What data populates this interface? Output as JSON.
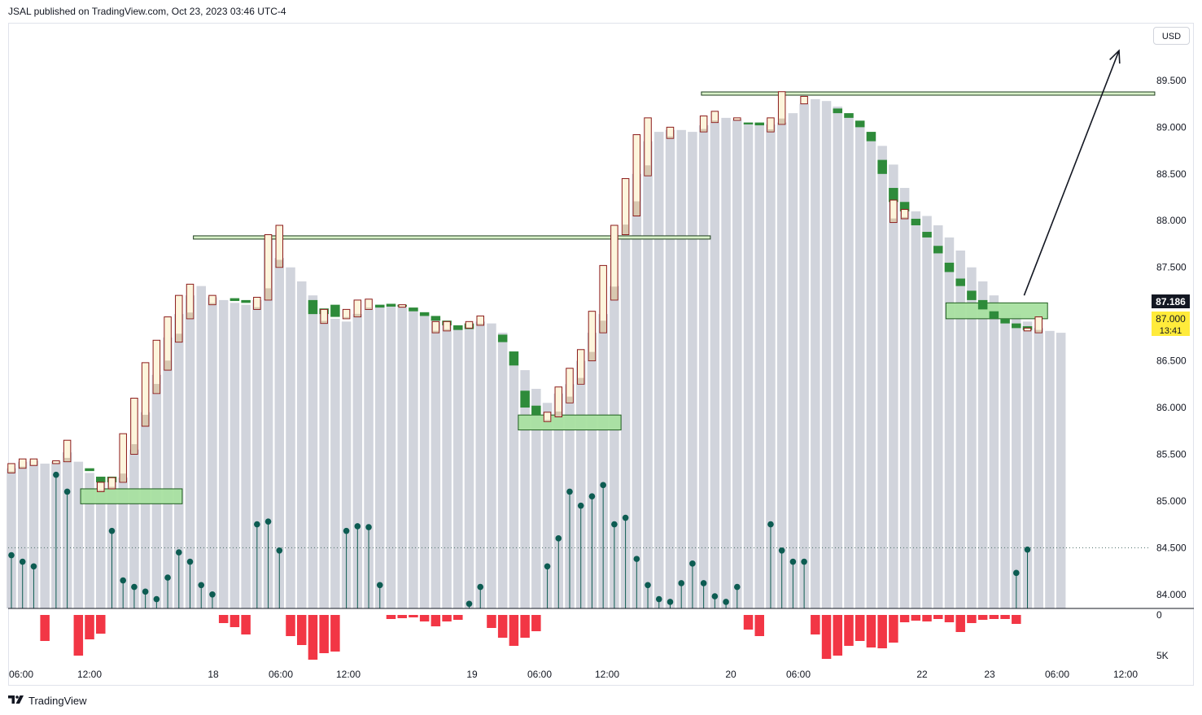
{
  "header": {
    "publisher_line": "JSAL published on TradingView.com, Oct 23, 2023 03:46 UTC-4"
  },
  "toolbar": {
    "currency_label": "USD"
  },
  "footer": {
    "brand_icon": "tradingview-logo-icon",
    "brand_name": "TradingView"
  },
  "price_tags": {
    "last_price": "87.186",
    "current_price": "87.000",
    "countdown": "13:41"
  },
  "colors": {
    "profile": "#d1d4dc",
    "candle_fill": "#fdf5dc",
    "candle_border": "#8b1a1a",
    "green_block": "#2e8b3a",
    "zone_fill": "#a8e0a0",
    "zone_border": "#1e5c1e",
    "lollipop": "#0d5c52",
    "volume": "#f23645"
  },
  "chart_data": {
    "type": "bar",
    "ylim": [
      83.85,
      90.1
    ],
    "y_ticks": [
      "89.500",
      "89.000",
      "88.500",
      "88.000",
      "87.500",
      "86.500",
      "86.000",
      "85.500",
      "85.000",
      "84.500",
      "84.000"
    ],
    "x_ticks": [
      "06:00",
      "12:00",
      "18",
      "06:00",
      "12:00",
      "19",
      "06:00",
      "12:00",
      "20",
      "06:00",
      "22",
      "23",
      "06:00",
      "12:00"
    ],
    "volume_ticks": [
      "0",
      "5K"
    ],
    "volume_max": 6000,
    "reference_line": 84.5,
    "profile_tops": [
      85.35,
      85.42,
      85.43,
      85.4,
      85.42,
      85.52,
      85.42,
      85.3,
      85.22,
      85.2,
      85.25,
      85.55,
      85.95,
      86.35,
      86.75,
      87.0,
      87.2,
      87.3,
      87.18,
      87.15,
      87.12,
      87.1,
      87.15,
      87.8,
      87.6,
      87.5,
      87.35,
      87.2,
      87.0,
      86.95,
      86.92,
      87.0,
      87.05,
      87.1,
      87.1,
      87.08,
      87.05,
      87.0,
      86.95,
      86.9,
      86.85,
      86.88,
      86.92,
      86.9,
      86.8,
      86.6,
      86.4,
      86.2,
      86.05,
      86.15,
      86.25,
      86.5,
      86.8,
      87.0,
      87.3,
      87.8,
      88.5,
      88.85,
      88.95,
      88.97,
      88.97,
      88.95,
      89.02,
      89.05,
      89.1,
      89.08,
      89.05,
      89.03,
      89.03,
      89.05,
      89.15,
      89.25,
      89.3,
      89.28,
      89.22,
      89.15,
      89.05,
      88.95,
      88.8,
      88.6,
      88.35,
      88.1,
      88.05,
      87.95,
      87.82,
      87.68,
      87.5,
      87.35,
      87.2,
      87.1,
      87.0,
      86.92,
      86.85,
      86.82,
      86.8
    ],
    "bar_spacing": 13.72,
    "candles": [
      {
        "i": 0,
        "low": 85.3,
        "high": 85.4
      },
      {
        "i": 1,
        "low": 85.35,
        "high": 85.45
      },
      {
        "i": 2,
        "low": 85.38,
        "high": 85.45
      },
      {
        "i": 4,
        "low": 85.4,
        "high": 85.43
      },
      {
        "i": 5,
        "low": 85.42,
        "high": 85.65
      },
      {
        "i": 8,
        "low": 85.1,
        "high": 85.2
      },
      {
        "i": 9,
        "low": 85.13,
        "high": 85.25
      },
      {
        "i": 10,
        "low": 85.2,
        "high": 85.72
      },
      {
        "i": 11,
        "low": 85.5,
        "high": 86.1
      },
      {
        "i": 12,
        "low": 85.8,
        "high": 86.48
      },
      {
        "i": 13,
        "low": 86.15,
        "high": 86.72
      },
      {
        "i": 14,
        "low": 86.4,
        "high": 86.97
      },
      {
        "i": 15,
        "low": 86.7,
        "high": 87.2
      },
      {
        "i": 16,
        "low": 86.95,
        "high": 87.32
      },
      {
        "i": 18,
        "low": 87.1,
        "high": 87.2
      },
      {
        "i": 22,
        "low": 87.05,
        "high": 87.18
      },
      {
        "i": 23,
        "low": 87.15,
        "high": 87.85
      },
      {
        "i": 24,
        "low": 87.5,
        "high": 87.95
      },
      {
        "i": 28,
        "low": 86.9,
        "high": 87.05
      },
      {
        "i": 30,
        "low": 86.95,
        "high": 87.05
      },
      {
        "i": 31,
        "low": 86.97,
        "high": 87.15
      },
      {
        "i": 32,
        "low": 87.05,
        "high": 87.16
      },
      {
        "i": 35,
        "low": 87.08,
        "high": 87.1
      },
      {
        "i": 38,
        "low": 86.8,
        "high": 86.92
      },
      {
        "i": 39,
        "low": 86.82,
        "high": 86.92
      },
      {
        "i": 41,
        "low": 86.85,
        "high": 86.92
      },
      {
        "i": 42,
        "low": 86.88,
        "high": 86.98
      },
      {
        "i": 48,
        "low": 85.85,
        "high": 85.95
      },
      {
        "i": 49,
        "low": 85.9,
        "high": 86.22
      },
      {
        "i": 50,
        "low": 86.05,
        "high": 86.42
      },
      {
        "i": 51,
        "low": 86.25,
        "high": 86.62
      },
      {
        "i": 52,
        "low": 86.5,
        "high": 87.03
      },
      {
        "i": 53,
        "low": 86.8,
        "high": 87.52
      },
      {
        "i": 54,
        "low": 87.15,
        "high": 87.95
      },
      {
        "i": 55,
        "low": 87.85,
        "high": 88.45
      },
      {
        "i": 56,
        "low": 88.05,
        "high": 88.92
      },
      {
        "i": 57,
        "low": 88.48,
        "high": 89.1
      },
      {
        "i": 59,
        "low": 88.88,
        "high": 89.0
      },
      {
        "i": 62,
        "low": 88.95,
        "high": 89.12
      },
      {
        "i": 63,
        "low": 89.05,
        "high": 89.17
      },
      {
        "i": 65,
        "low": 89.08,
        "high": 89.1
      },
      {
        "i": 68,
        "low": 88.95,
        "high": 89.1
      },
      {
        "i": 69,
        "low": 89.03,
        "high": 89.38
      },
      {
        "i": 71,
        "low": 89.25,
        "high": 89.33
      },
      {
        "i": 79,
        "low": 87.98,
        "high": 88.22
      },
      {
        "i": 80,
        "low": 88.02,
        "high": 88.12
      },
      {
        "i": 91,
        "low": 86.82,
        "high": 86.85
      },
      {
        "i": 92,
        "low": 86.8,
        "high": 86.97
      }
    ],
    "green_blocks": [
      {
        "i": 7,
        "low": 85.32,
        "high": 85.35
      },
      {
        "i": 8,
        "low": 85.2,
        "high": 85.26
      },
      {
        "i": 9,
        "low": 85.2,
        "high": 85.26
      },
      {
        "i": 20,
        "low": 87.14,
        "high": 87.17
      },
      {
        "i": 21,
        "low": 87.12,
        "high": 87.15
      },
      {
        "i": 27,
        "low": 87.0,
        "high": 87.15
      },
      {
        "i": 28,
        "low": 87.0,
        "high": 87.06
      },
      {
        "i": 29,
        "low": 86.97,
        "high": 87.1
      },
      {
        "i": 33,
        "low": 87.07,
        "high": 87.1
      },
      {
        "i": 34,
        "low": 87.08,
        "high": 87.11
      },
      {
        "i": 35,
        "low": 87.08,
        "high": 87.1
      },
      {
        "i": 36,
        "low": 87.03,
        "high": 87.07
      },
      {
        "i": 37,
        "low": 86.98,
        "high": 87.02
      },
      {
        "i": 38,
        "low": 86.93,
        "high": 86.98
      },
      {
        "i": 39,
        "low": 86.88,
        "high": 86.93
      },
      {
        "i": 40,
        "low": 86.83,
        "high": 86.88
      },
      {
        "i": 41,
        "low": 86.84,
        "high": 86.9
      },
      {
        "i": 44,
        "low": 86.7,
        "high": 86.78
      },
      {
        "i": 45,
        "low": 86.45,
        "high": 86.6
      },
      {
        "i": 46,
        "low": 86.0,
        "high": 86.18
      },
      {
        "i": 47,
        "low": 85.92,
        "high": 86.02
      },
      {
        "i": 66,
        "low": 89.03,
        "high": 89.05
      },
      {
        "i": 67,
        "low": 89.02,
        "high": 89.05
      },
      {
        "i": 74,
        "low": 89.15,
        "high": 89.2
      },
      {
        "i": 75,
        "low": 89.1,
        "high": 89.15
      },
      {
        "i": 76,
        "low": 89.0,
        "high": 89.07
      },
      {
        "i": 77,
        "low": 88.85,
        "high": 88.95
      },
      {
        "i": 78,
        "low": 88.5,
        "high": 88.65
      },
      {
        "i": 79,
        "low": 88.2,
        "high": 88.35
      },
      {
        "i": 80,
        "low": 88.1,
        "high": 88.2
      },
      {
        "i": 81,
        "low": 87.95,
        "high": 88.02
      },
      {
        "i": 82,
        "low": 87.82,
        "high": 87.88
      },
      {
        "i": 83,
        "low": 87.65,
        "high": 87.73
      },
      {
        "i": 84,
        "low": 87.45,
        "high": 87.55
      },
      {
        "i": 85,
        "low": 87.3,
        "high": 87.38
      },
      {
        "i": 86,
        "low": 87.15,
        "high": 87.25
      },
      {
        "i": 87,
        "low": 87.05,
        "high": 87.15
      },
      {
        "i": 88,
        "low": 86.95,
        "high": 87.03
      },
      {
        "i": 89,
        "low": 86.9,
        "high": 86.95
      },
      {
        "i": 90,
        "low": 86.85,
        "high": 86.9
      },
      {
        "i": 91,
        "low": 86.83,
        "high": 86.87
      }
    ],
    "zones": [
      {
        "i0": 6.2,
        "i1": 15.3,
        "low": 84.97,
        "high": 85.13
      },
      {
        "i0": 45.4,
        "i1": 54.6,
        "low": 85.76,
        "high": 85.92
      },
      {
        "i0": 83.7,
        "i1": 92.8,
        "low": 86.95,
        "high": 87.12
      }
    ],
    "resistance_lines": [
      {
        "i0": 16.3,
        "i1": 62.6,
        "price": 87.82
      },
      {
        "i0": 61.8,
        "i1": 102.4,
        "price": 89.36
      }
    ],
    "arrow": {
      "from_i": 90.7,
      "from_price": 87.2,
      "to_i": 99.2,
      "to_price": 89.82
    },
    "lollipops": [
      {
        "i": 0,
        "v": 84.42
      },
      {
        "i": 1,
        "v": 84.35
      },
      {
        "i": 2,
        "v": 84.3
      },
      {
        "i": 4,
        "v": 85.28
      },
      {
        "i": 5,
        "v": 85.1
      },
      {
        "i": 9,
        "v": 84.68
      },
      {
        "i": 10,
        "v": 84.15
      },
      {
        "i": 11,
        "v": 84.08
      },
      {
        "i": 12,
        "v": 84.03
      },
      {
        "i": 13,
        "v": 83.95
      },
      {
        "i": 14,
        "v": 84.18
      },
      {
        "i": 15,
        "v": 84.45
      },
      {
        "i": 16,
        "v": 84.35
      },
      {
        "i": 17,
        "v": 84.1
      },
      {
        "i": 18,
        "v": 84.0
      },
      {
        "i": 22,
        "v": 84.75
      },
      {
        "i": 23,
        "v": 84.78
      },
      {
        "i": 24,
        "v": 84.47
      },
      {
        "i": 30,
        "v": 84.68
      },
      {
        "i": 31,
        "v": 84.73
      },
      {
        "i": 32,
        "v": 84.72
      },
      {
        "i": 33,
        "v": 84.1
      },
      {
        "i": 41,
        "v": 83.9
      },
      {
        "i": 42,
        "v": 84.08
      },
      {
        "i": 48,
        "v": 84.3
      },
      {
        "i": 49,
        "v": 84.6
      },
      {
        "i": 50,
        "v": 85.1
      },
      {
        "i": 51,
        "v": 84.95
      },
      {
        "i": 52,
        "v": 85.05
      },
      {
        "i": 53,
        "v": 85.17
      },
      {
        "i": 54,
        "v": 84.75
      },
      {
        "i": 55,
        "v": 84.82
      },
      {
        "i": 56,
        "v": 84.38
      },
      {
        "i": 57,
        "v": 84.1
      },
      {
        "i": 58,
        "v": 83.95
      },
      {
        "i": 59,
        "v": 83.92
      },
      {
        "i": 60,
        "v": 84.12
      },
      {
        "i": 61,
        "v": 84.33
      },
      {
        "i": 62,
        "v": 84.12
      },
      {
        "i": 63,
        "v": 83.98
      },
      {
        "i": 64,
        "v": 83.92
      },
      {
        "i": 65,
        "v": 84.08
      },
      {
        "i": 68,
        "v": 84.75
      },
      {
        "i": 69,
        "v": 84.47
      },
      {
        "i": 70,
        "v": 84.35
      },
      {
        "i": 71,
        "v": 84.35
      },
      {
        "i": 90,
        "v": 84.23
      },
      {
        "i": 91,
        "v": 84.48
      }
    ],
    "volume": [
      {
        "i": 3,
        "v": 3200
      },
      {
        "i": 6,
        "v": 5000
      },
      {
        "i": 7,
        "v": 3000
      },
      {
        "i": 8,
        "v": 2300
      },
      {
        "i": 19,
        "v": 1000
      },
      {
        "i": 20,
        "v": 1500
      },
      {
        "i": 21,
        "v": 2400
      },
      {
        "i": 25,
        "v": 2600
      },
      {
        "i": 26,
        "v": 3700
      },
      {
        "i": 27,
        "v": 5500
      },
      {
        "i": 28,
        "v": 4700
      },
      {
        "i": 29,
        "v": 4500
      },
      {
        "i": 34,
        "v": 500
      },
      {
        "i": 35,
        "v": 400
      },
      {
        "i": 36,
        "v": 300
      },
      {
        "i": 37,
        "v": 800
      },
      {
        "i": 38,
        "v": 1400
      },
      {
        "i": 39,
        "v": 800
      },
      {
        "i": 40,
        "v": 600
      },
      {
        "i": 43,
        "v": 1600
      },
      {
        "i": 44,
        "v": 2800
      },
      {
        "i": 45,
        "v": 3800
      },
      {
        "i": 46,
        "v": 2800
      },
      {
        "i": 47,
        "v": 2000
      },
      {
        "i": 66,
        "v": 1800
      },
      {
        "i": 67,
        "v": 2600
      },
      {
        "i": 72,
        "v": 2400
      },
      {
        "i": 73,
        "v": 5400
      },
      {
        "i": 74,
        "v": 5000
      },
      {
        "i": 75,
        "v": 3800
      },
      {
        "i": 76,
        "v": 3200
      },
      {
        "i": 77,
        "v": 4000
      },
      {
        "i": 78,
        "v": 4100
      },
      {
        "i": 79,
        "v": 3400
      },
      {
        "i": 80,
        "v": 900
      },
      {
        "i": 81,
        "v": 700
      },
      {
        "i": 82,
        "v": 800
      },
      {
        "i": 83,
        "v": 500
      },
      {
        "i": 84,
        "v": 900
      },
      {
        "i": 85,
        "v": 2100
      },
      {
        "i": 86,
        "v": 1000
      },
      {
        "i": 87,
        "v": 600
      },
      {
        "i": 88,
        "v": 500
      },
      {
        "i": 89,
        "v": 500
      },
      {
        "i": 90,
        "v": 1100
      }
    ]
  }
}
